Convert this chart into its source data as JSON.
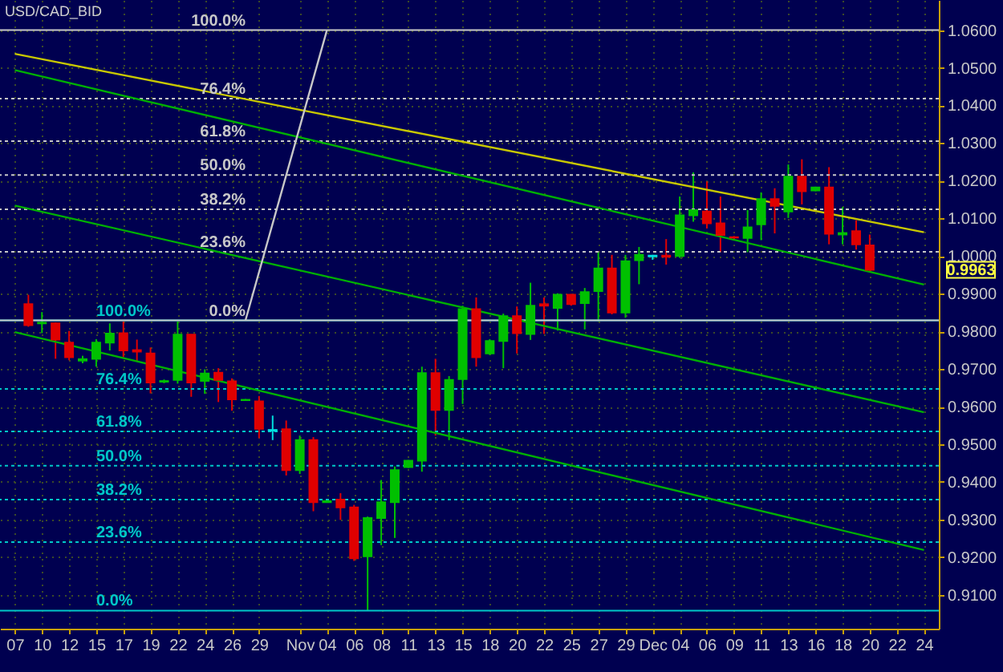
{
  "chart_data": {
    "type": "candlestick",
    "title": "USD/CAD_BID",
    "categories": [
      "07",
      null,
      "10",
      null,
      "12",
      null,
      "15",
      null,
      "17",
      null,
      "19",
      null,
      "22",
      null,
      "24",
      null,
      "26",
      null,
      "29",
      null,
      null,
      "Nov",
      null,
      "04",
      null,
      "06",
      null,
      "08",
      null,
      "11",
      null,
      "13",
      null,
      "15",
      null,
      "18",
      null,
      "20",
      null,
      "22",
      null,
      "25",
      null,
      "27",
      null,
      "29",
      null,
      "Dec",
      null,
      "04",
      null,
      "06",
      null,
      "09",
      null,
      "11",
      null,
      "13",
      null,
      "16",
      null,
      "18",
      null,
      "20",
      null,
      "22",
      null,
      "24"
    ],
    "ohlc": [
      null,
      [
        0.9872,
        0.9897,
        0.9812,
        0.9816
      ],
      [
        0.9821,
        0.9851,
        0.9795,
        0.9823
      ],
      [
        0.9821,
        0.9823,
        0.9727,
        0.9778
      ],
      [
        0.977,
        0.9801,
        0.9723,
        0.9731
      ],
      [
        0.9722,
        0.9735,
        0.9715,
        0.9726
      ],
      [
        0.9727,
        0.9779,
        0.9706,
        0.977
      ],
      [
        0.977,
        0.9821,
        0.9749,
        0.9794
      ],
      [
        0.9795,
        0.9826,
        0.9731,
        0.9749
      ],
      [
        0.975,
        0.9778,
        0.972,
        0.9746
      ],
      [
        0.9741,
        0.9757,
        0.9635,
        0.9664
      ],
      [
        0.9666,
        0.9672,
        0.9662,
        0.9668
      ],
      [
        0.9671,
        0.9826,
        0.9661,
        0.9791
      ],
      [
        0.9791,
        0.9791,
        0.9626,
        0.9664
      ],
      [
        0.9668,
        0.9699,
        0.9634,
        0.9688
      ],
      [
        0.969,
        0.9702,
        0.9612,
        0.9671
      ],
      [
        0.9667,
        0.9675,
        0.9589,
        0.9619
      ],
      [
        0.9617,
        0.962,
        0.9615,
        0.9618
      ],
      [
        0.9614,
        0.9628,
        0.9516,
        0.9541
      ],
      [
        0.9538,
        0.9576,
        0.9511,
        0.9536
      ],
      [
        0.954,
        0.9563,
        0.9417,
        0.9431
      ],
      [
        0.9431,
        0.9523,
        0.9421,
        0.9511
      ],
      [
        0.9511,
        0.9519,
        0.9322,
        0.9346
      ],
      [
        0.9346,
        0.9351,
        0.9345,
        0.9349
      ],
      [
        0.9353,
        0.937,
        0.9299,
        0.9332
      ],
      [
        0.9332,
        0.9339,
        0.919,
        0.9197
      ],
      [
        0.9202,
        0.9308,
        0.9058,
        0.9304
      ],
      [
        0.9304,
        0.9405,
        0.9232,
        0.9346
      ],
      [
        0.9346,
        0.9441,
        0.9251,
        0.9431
      ],
      [
        0.9439,
        0.9458,
        0.9437,
        0.9456
      ],
      [
        0.9456,
        0.9706,
        0.9427,
        0.9689
      ],
      [
        0.9689,
        0.9727,
        0.9523,
        0.9591
      ],
      [
        0.9591,
        0.9681,
        0.9511,
        0.9671
      ],
      [
        0.9673,
        0.9868,
        0.9607,
        0.9859
      ],
      [
        0.9859,
        0.989,
        0.9706,
        0.9731
      ],
      [
        0.9741,
        0.9779,
        0.9737,
        0.9774
      ],
      [
        0.9774,
        0.9847,
        0.9702,
        0.984
      ],
      [
        0.984,
        0.9866,
        0.9741,
        0.9795
      ],
      [
        0.9793,
        0.9929,
        0.9777,
        0.9868
      ],
      [
        0.9872,
        0.989,
        0.9793,
        0.9868
      ],
      [
        0.9862,
        0.9901,
        0.9802,
        0.9897
      ],
      [
        0.9897,
        0.9899,
        0.9868,
        0.9872
      ],
      [
        0.9875,
        0.9915,
        0.9805,
        0.9904
      ],
      [
        0.9907,
        1.001,
        0.9826,
        0.9967
      ],
      [
        0.9967,
        1.0003,
        0.9845,
        0.985
      ],
      [
        0.985,
        1.0003,
        0.9836,
        0.9986
      ],
      [
        0.9989,
        1.0024,
        0.9925,
        1.0003
      ],
      [
        1.0001,
        1.0003,
        0.999,
        0.9999
      ],
      [
        1.0001,
        1.0045,
        0.9977,
        0.9998
      ],
      [
        1.0,
        1.0158,
        0.9995,
        1.0108
      ],
      [
        1.0108,
        1.0222,
        1.0091,
        1.0122
      ],
      [
        1.0118,
        1.0198,
        1.0073,
        1.0087
      ],
      [
        1.0087,
        1.0158,
        1.001,
        1.0056
      ],
      [
        1.005,
        1.0053,
        1.0043,
        1.0049
      ],
      [
        1.0048,
        1.0122,
        1.001,
        1.0076
      ],
      [
        1.0084,
        1.0169,
        1.0042,
        1.0151
      ],
      [
        1.0151,
        1.018,
        1.006,
        1.0133
      ],
      [
        1.0118,
        1.0243,
        1.0101,
        1.0211
      ],
      [
        1.0211,
        1.0257,
        1.0137,
        1.0172
      ],
      [
        1.0174,
        1.0184,
        1.0172,
        1.0182
      ],
      [
        1.0182,
        1.0236,
        1.0031,
        1.0059
      ],
      [
        1.0057,
        1.013,
        1.0031,
        1.0061
      ],
      [
        1.0066,
        1.0095,
        1.0017,
        1.0031
      ],
      [
        1.0028,
        1.0057,
        0.996,
        0.9963
      ],
      null,
      null,
      null,
      null
    ],
    "colors": [
      null,
      "#e00000",
      "#00c000",
      "#e00000",
      "#e00000",
      "#00c000",
      "#00c000",
      "#00c000",
      "#e00000",
      "#e00000",
      "#e00000",
      "#00c000",
      "#00c000",
      "#e00000",
      "#00c000",
      "#e00000",
      "#e00000",
      "#00c000",
      "#e00000",
      "#00e0e0",
      "#e00000",
      "#00c000",
      "#e00000",
      "#00c000",
      "#e00000",
      "#e00000",
      "#00c000",
      "#00c000",
      "#00c000",
      "#00c000",
      "#00c000",
      "#e00000",
      "#00c000",
      "#00c000",
      "#e00000",
      "#00c000",
      "#00c000",
      "#e00000",
      "#00c000",
      "#e00000",
      "#00c000",
      "#e00000",
      "#00c000",
      "#00c000",
      "#e00000",
      "#00c000",
      "#00c000",
      "#00e0e0",
      "#e00000",
      "#00c000",
      "#00c000",
      "#e00000",
      "#e00000",
      "#e00000",
      "#00c000",
      "#00c000",
      "#e00000",
      "#00c000",
      "#e00000",
      "#00c000",
      "#e00000",
      "#00c000",
      "#e00000",
      "#e00000",
      null,
      null,
      null,
      null
    ],
    "series": [
      {
        "type": "line",
        "color": "#c8c800",
        "values": [
          1.0537,
          null,
          null,
          null,
          null,
          null,
          null,
          null,
          null,
          null,
          null,
          null,
          null,
          null,
          null,
          null,
          null,
          null,
          null,
          null,
          null,
          null,
          null,
          null,
          null,
          null,
          null,
          null,
          null,
          null,
          null,
          null,
          null,
          null,
          null,
          null,
          null,
          null,
          null,
          null,
          null,
          null,
          null,
          null,
          null,
          null,
          null,
          null,
          null,
          null,
          null,
          null,
          null,
          null,
          null,
          null,
          null,
          null,
          null,
          null,
          null,
          null,
          null,
          null,
          null,
          null,
          null,
          1.0063
        ]
      },
      {
        "type": "line",
        "color": "#00b000",
        "values": [
          1.0494,
          null,
          null,
          null,
          null,
          null,
          null,
          null,
          null,
          null,
          null,
          null,
          null,
          null,
          null,
          null,
          null,
          null,
          null,
          null,
          null,
          null,
          null,
          null,
          null,
          null,
          null,
          null,
          null,
          null,
          null,
          null,
          null,
          null,
          null,
          null,
          null,
          null,
          null,
          null,
          null,
          null,
          null,
          null,
          null,
          null,
          null,
          null,
          null,
          null,
          null,
          null,
          null,
          null,
          null,
          null,
          null,
          null,
          null,
          null,
          null,
          null,
          null,
          null,
          null,
          null,
          null,
          0.9924
        ]
      },
      {
        "type": "line",
        "color": "#00b000",
        "values": [
          1.0134,
          null,
          null,
          null,
          null,
          null,
          null,
          null,
          null,
          null,
          null,
          null,
          null,
          null,
          null,
          null,
          null,
          null,
          null,
          null,
          null,
          null,
          null,
          null,
          null,
          null,
          null,
          null,
          null,
          null,
          null,
          null,
          null,
          null,
          null,
          null,
          null,
          null,
          null,
          null,
          null,
          null,
          null,
          null,
          null,
          null,
          null,
          null,
          null,
          null,
          null,
          null,
          null,
          null,
          null,
          null,
          null,
          null,
          null,
          null,
          null,
          null,
          null,
          null,
          null,
          null,
          null,
          0.9585
        ]
      },
      {
        "type": "line",
        "color": "#00b000",
        "values": [
          0.9798,
          null,
          null,
          null,
          null,
          null,
          null,
          null,
          null,
          null,
          null,
          null,
          null,
          null,
          null,
          null,
          null,
          null,
          null,
          null,
          null,
          null,
          null,
          null,
          null,
          null,
          null,
          null,
          null,
          null,
          null,
          null,
          null,
          null,
          null,
          null,
          null,
          null,
          null,
          null,
          null,
          null,
          null,
          null,
          null,
          null,
          null,
          null,
          null,
          null,
          null,
          null,
          null,
          null,
          null,
          null,
          null,
          null,
          null,
          null,
          null,
          null,
          null,
          null,
          null,
          null,
          null,
          0.9219
        ]
      },
      {
        "type": "line",
        "color": "#c8c8c8",
        "values": [
          null,
          null,
          null,
          null,
          null,
          null,
          null,
          null,
          null,
          null,
          null,
          null,
          null,
          null,
          null,
          null,
          null,
          0.9829,
          null,
          null,
          null,
          null,
          null,
          1.06,
          null,
          null,
          null,
          null,
          null,
          null,
          null,
          null,
          null,
          null,
          null,
          null,
          null,
          null,
          null,
          null,
          null,
          null,
          null,
          null,
          null,
          null,
          null,
          null,
          null,
          null,
          null,
          null,
          null,
          null,
          null,
          null,
          null,
          null,
          null,
          null,
          null,
          null,
          null,
          null,
          null,
          null,
          null,
          null
        ]
      }
    ],
    "ref_lines": [
      {
        "axis": "y",
        "value": 0.9829,
        "color": "#00c8c8",
        "line_style": "solid"
      },
      {
        "axis": "y",
        "value": 0.9647,
        "color": "#00c8c8",
        "line_style": "dotted"
      },
      {
        "axis": "y",
        "value": 0.9534,
        "color": "#00c8c8",
        "line_style": "dotted"
      },
      {
        "axis": "y",
        "value": 0.9443,
        "color": "#00c8c8",
        "line_style": "dotted"
      },
      {
        "axis": "y",
        "value": 0.9353,
        "color": "#00c8c8",
        "line_style": "dotted"
      },
      {
        "axis": "y",
        "value": 0.924,
        "color": "#00c8c8",
        "line_style": "dotted"
      },
      {
        "axis": "y",
        "value": 0.9058,
        "color": "#00c8c8",
        "line_style": "solid"
      },
      {
        "axis": "y",
        "value": 1.06,
        "color": "#c8c8c8",
        "line_style": "solid"
      },
      {
        "axis": "y",
        "value": 1.0418,
        "color": "#c8c8c8",
        "line_style": "dotted"
      },
      {
        "axis": "y",
        "value": 1.0305,
        "color": "#c8c8c8",
        "line_style": "dotted"
      },
      {
        "axis": "y",
        "value": 1.0215,
        "color": "#c8c8c8",
        "line_style": "dotted"
      },
      {
        "axis": "y",
        "value": 1.0124,
        "color": "#c8c8c8",
        "line_style": "dotted"
      },
      {
        "axis": "y",
        "value": 1.0011,
        "color": "#c8c8c8",
        "line_style": "dotted"
      },
      {
        "axis": "y",
        "value": 0.9829,
        "color": "#c8c8c8",
        "line_style": "solid"
      }
    ],
    "annotations": [
      {
        "text": "100.0%",
        "y": 0.9829
      },
      {
        "text": "76.4%",
        "y": 0.9647
      },
      {
        "text": "61.8%",
        "y": 0.9534
      },
      {
        "text": "50.0%",
        "y": 0.9443
      },
      {
        "text": "38.2%",
        "y": 0.9353
      },
      {
        "text": "23.6%",
        "y": 0.924
      },
      {
        "text": "0.0%",
        "y": 0.9058
      },
      {
        "text": "100.0%",
        "y": 1.06
      },
      {
        "text": "76.4%",
        "y": 1.0418
      },
      {
        "text": "61.8%",
        "y": 1.0305
      },
      {
        "text": "50.0%",
        "y": 1.0215
      },
      {
        "text": "38.2%",
        "y": 1.0124
      },
      {
        "text": "23.6%",
        "y": 1.0011
      },
      {
        "text": "0.0%",
        "y": 0.9829
      },
      "0.9963"
    ],
    "ylim": [
      0.901,
      1.068
    ],
    "yticks": [
      {
        "value": 0.91,
        "label": "0.9100"
      },
      {
        "value": 0.92,
        "label": "0.9200"
      },
      {
        "value": 0.93,
        "label": "0.9300"
      },
      {
        "value": 0.94,
        "label": "0.9400"
      },
      {
        "value": 0.95,
        "label": "0.9500"
      },
      {
        "value": 0.96,
        "label": "0.9600"
      },
      {
        "value": 0.97,
        "label": "0.9700"
      },
      {
        "value": 0.98,
        "label": "0.9800"
      },
      {
        "value": 0.99,
        "label": "0.9900"
      },
      {
        "value": 1.0,
        "label": "1.0000"
      },
      {
        "value": 1.01,
        "label": "1.0100"
      },
      {
        "value": 1.02,
        "label": "1.0200"
      },
      {
        "value": 1.03,
        "label": "1.0300"
      },
      {
        "value": 1.04,
        "label": "1.0400"
      },
      {
        "value": 1.05,
        "label": "1.0500"
      },
      {
        "value": 1.06,
        "label": "1.0600"
      }
    ],
    "grid": true
  }
}
